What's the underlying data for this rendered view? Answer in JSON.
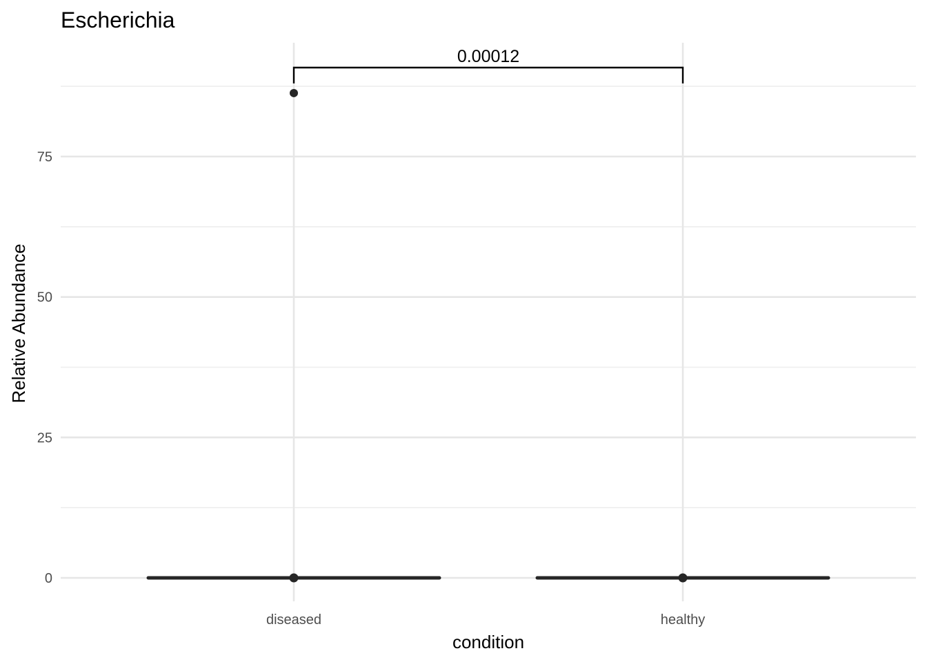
{
  "chart_data": {
    "type": "scatter",
    "title": "Escherichia",
    "xlabel": "condition",
    "ylabel": "Relative Abundance",
    "categories": [
      "diseased",
      "healthy"
    ],
    "y_ticks": [
      0,
      25,
      50,
      75
    ],
    "ylim": [
      -3.5,
      94
    ],
    "grid": true,
    "summary": [
      {
        "category": "diseased",
        "median": 0,
        "lower": 0,
        "upper": 0
      },
      {
        "category": "healthy",
        "median": 0,
        "lower": 0,
        "upper": 0
      }
    ],
    "points": [
      {
        "category": "diseased",
        "y": 86.3
      }
    ],
    "comparisons": [
      {
        "group1": "diseased",
        "group2": "healthy",
        "label": "0.00012"
      }
    ]
  }
}
